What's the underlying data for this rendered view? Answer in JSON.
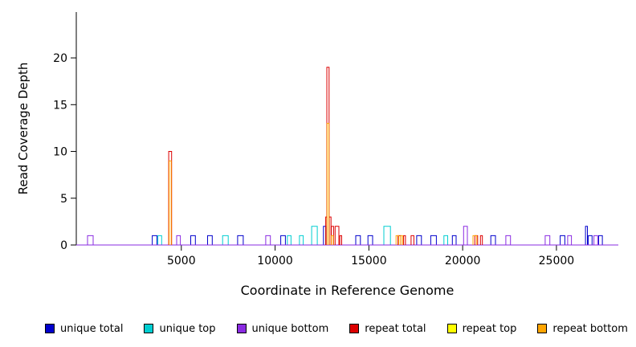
{
  "chart_data": {
    "type": "line",
    "subtype": "step-coverage",
    "title": "",
    "xlabel": "Coordinate in Reference Genome",
    "ylabel": "Read Coverage Depth",
    "xlim": [
      -600,
      28300
    ],
    "ylim": [
      0,
      24.9
    ],
    "xticks": [
      5000,
      10000,
      15000,
      20000,
      25000
    ],
    "x_tick_labels": [
      "5000",
      "10000",
      "15000",
      "20000",
      "25000"
    ],
    "yticks": [
      0,
      5,
      10,
      15,
      20
    ],
    "y_tick_labels": [
      "0",
      "5",
      "10",
      "15",
      "20"
    ],
    "grid": false,
    "legend_position": "bottom",
    "series": [
      {
        "name": "unique total",
        "color": "#0000CC",
        "baseline": true,
        "segments": [
          [
            3450,
            3700,
            1
          ],
          [
            5500,
            5750,
            1
          ],
          [
            6400,
            6650,
            1
          ],
          [
            8000,
            8300,
            1
          ],
          [
            10300,
            10550,
            1
          ],
          [
            12580,
            12700,
            2
          ],
          [
            14300,
            14550,
            1
          ],
          [
            14950,
            15200,
            1
          ],
          [
            17550,
            17800,
            1
          ],
          [
            18300,
            18600,
            1
          ],
          [
            19450,
            19650,
            1
          ],
          [
            21500,
            21750,
            1
          ],
          [
            25200,
            25450,
            1
          ],
          [
            26550,
            26650,
            2
          ],
          [
            26700,
            26900,
            1
          ],
          [
            27250,
            27450,
            1
          ]
        ]
      },
      {
        "name": "unique top",
        "color": "#00CED1",
        "baseline": true,
        "segments": [
          [
            3750,
            3950,
            1
          ],
          [
            7200,
            7500,
            1
          ],
          [
            10650,
            10850,
            1
          ],
          [
            11300,
            11500,
            1
          ],
          [
            11950,
            12250,
            2
          ],
          [
            15800,
            16150,
            2
          ],
          [
            19000,
            19200,
            1
          ]
        ]
      },
      {
        "name": "unique bottom",
        "color": "#8A2BE2",
        "baseline": true,
        "segments": [
          [
            0,
            300,
            1
          ],
          [
            4750,
            4950,
            1
          ],
          [
            9500,
            9750,
            1
          ],
          [
            20050,
            20250,
            2
          ],
          [
            22300,
            22550,
            1
          ],
          [
            24400,
            24650,
            1
          ],
          [
            25600,
            25800,
            1
          ],
          [
            27000,
            27200,
            1
          ]
        ]
      },
      {
        "name": "repeat total",
        "color": "#DC0000",
        "baseline": false,
        "segments": [
          [
            4330,
            4480,
            10
          ],
          [
            12700,
            12760,
            3
          ],
          [
            12760,
            12880,
            19
          ],
          [
            12880,
            12980,
            3
          ],
          [
            13000,
            13120,
            2
          ],
          [
            13200,
            13400,
            2
          ],
          [
            13450,
            13550,
            1
          ],
          [
            16550,
            16700,
            1
          ],
          [
            16850,
            16950,
            1
          ],
          [
            17250,
            17400,
            1
          ],
          [
            20650,
            20800,
            1
          ],
          [
            20950,
            21050,
            1
          ]
        ]
      },
      {
        "name": "repeat top",
        "color": "#FFFF00",
        "baseline": false,
        "segments": []
      },
      {
        "name": "repeat bottom",
        "color": "#FFA500",
        "baseline": false,
        "segments": [
          [
            4350,
            4460,
            9
          ],
          [
            12770,
            12870,
            13
          ],
          [
            13000,
            13100,
            1
          ],
          [
            16450,
            16600,
            1
          ],
          [
            16700,
            16800,
            1
          ],
          [
            20550,
            20750,
            1
          ]
        ]
      }
    ]
  },
  "colors": {
    "background": "#FFFFFF",
    "axis": "#000000"
  }
}
